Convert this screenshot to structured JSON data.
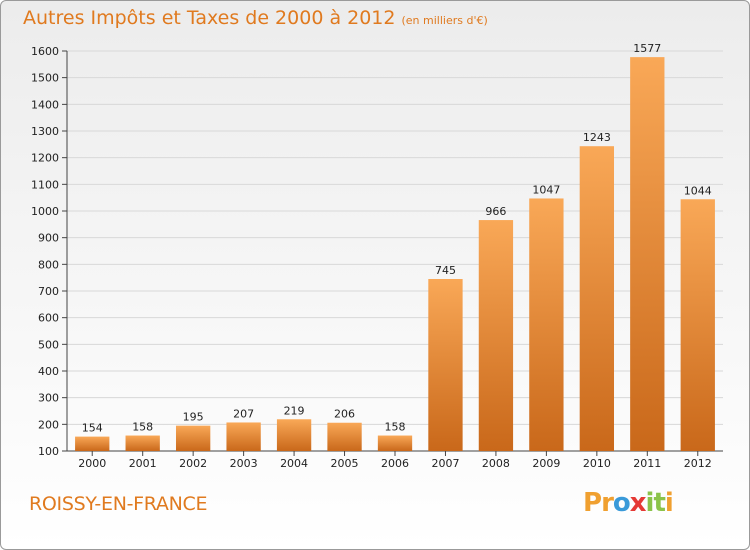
{
  "header": {
    "title": "Autres Impôts et Taxes de 2000 à 2012",
    "subtitle": "(en milliers d'€)"
  },
  "footer": {
    "commune": "ROISSY-EN-FRANCE",
    "logo_letters": [
      "P",
      "r",
      "o",
      "x",
      "i",
      "t",
      "i"
    ]
  },
  "colors": {
    "accent": "#e07a1f",
    "bar_top": "#f9a857",
    "bar_bottom": "#c9681a",
    "logo": [
      "#f0a030",
      "#f0a030",
      "#3a9ad9",
      "#e53935",
      "#8bc34a",
      "#8bc34a",
      "#f0a030"
    ]
  },
  "chart_data": {
    "type": "bar",
    "categories": [
      "2000",
      "2001",
      "2002",
      "2003",
      "2004",
      "2005",
      "2006",
      "2007",
      "2008",
      "2009",
      "2010",
      "2011",
      "2012"
    ],
    "values": [
      154,
      158,
      195,
      207,
      219,
      206,
      158,
      745,
      966,
      1047,
      1243,
      1577,
      1044
    ],
    "title": "Autres Impôts et Taxes de 2000 à 2012",
    "subtitle": "(en milliers d'€)",
    "xlabel": "",
    "ylabel": "",
    "ylim": [
      100,
      1600
    ],
    "yticks": [
      100,
      200,
      300,
      400,
      500,
      600,
      700,
      800,
      900,
      1000,
      1100,
      1200,
      1300,
      1400,
      1500,
      1600
    ],
    "grid": true,
    "legend": "none"
  }
}
